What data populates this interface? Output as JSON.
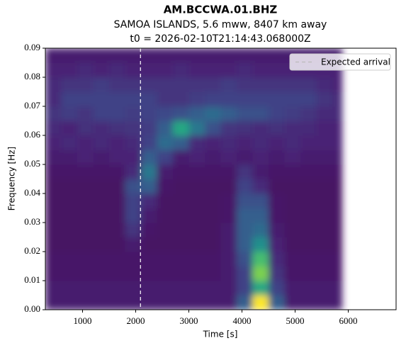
{
  "chart_data": {
    "type": "heatmap",
    "title": "AM.BCCWA.01.BHZ",
    "subtitle": "SAMOA ISLANDS, 5.6 mww, 8407 km away",
    "subtitle2": "t0 = 2026-02-10T21:14:43.068000Z",
    "x_label": "Time [s]",
    "y_label": "Frequency [Hz]",
    "colormap": "viridis",
    "xlim": [
      300,
      6900
    ],
    "ylim": [
      0,
      0.09
    ],
    "xticks": [
      1000,
      2000,
      3000,
      4000,
      5000,
      6000
    ],
    "yticks": [
      {
        "value": 0,
        "label": "0.00"
      },
      {
        "value": 0.01,
        "label": "0.01"
      },
      {
        "value": 0.02,
        "label": "0.02"
      },
      {
        "value": 0.03,
        "label": "0.03"
      },
      {
        "value": 0.04,
        "label": "0.04"
      },
      {
        "value": 0.05,
        "label": "0.05"
      },
      {
        "value": 0.06,
        "label": "0.06"
      },
      {
        "value": 0.07,
        "label": "0.07"
      },
      {
        "value": 0.08,
        "label": "0.08"
      },
      {
        "value": 0.09,
        "label": "0.09"
      }
    ],
    "xbins": [
      300,
      600,
      900,
      1200,
      1500,
      1800,
      2100,
      2400,
      2700,
      3000,
      3300,
      3600,
      3900,
      4200,
      4500,
      4800,
      5100,
      5400,
      5700,
      5880
    ],
    "ybins": [
      0,
      0.005,
      0.01,
      0.015,
      0.02,
      0.025,
      0.03,
      0.035,
      0.04,
      0.045,
      0.05,
      0.055,
      0.06,
      0.065,
      0.07,
      0.075,
      0.08,
      0.085,
      0.09
    ],
    "z": [
      [
        0.08,
        0.08,
        0.08,
        0.08,
        0.08,
        0.08,
        0.08,
        0.08,
        0.08,
        0.08,
        0.08,
        0.08,
        0.3,
        1.0,
        0.3,
        0.08,
        0.08,
        0.08,
        0.08
      ],
      [
        0.08,
        0.08,
        0.08,
        0.08,
        0.08,
        0.08,
        0.08,
        0.08,
        0.08,
        0.08,
        0.08,
        0.08,
        0.2,
        0.6,
        0.2,
        0.08,
        0.08,
        0.08,
        0.08
      ],
      [
        0.06,
        0.06,
        0.06,
        0.06,
        0.06,
        0.06,
        0.06,
        0.06,
        0.06,
        0.06,
        0.06,
        0.08,
        0.2,
        0.8,
        0.15,
        0.06,
        0.06,
        0.06,
        0.06
      ],
      [
        0.06,
        0.06,
        0.06,
        0.06,
        0.06,
        0.06,
        0.06,
        0.06,
        0.06,
        0.06,
        0.06,
        0.08,
        0.25,
        0.7,
        0.12,
        0.06,
        0.06,
        0.06,
        0.06
      ],
      [
        0.05,
        0.05,
        0.05,
        0.05,
        0.05,
        0.08,
        0.05,
        0.05,
        0.05,
        0.05,
        0.05,
        0.08,
        0.3,
        0.5,
        0.1,
        0.05,
        0.05,
        0.05,
        0.05
      ],
      [
        0.05,
        0.05,
        0.05,
        0.05,
        0.05,
        0.15,
        0.06,
        0.05,
        0.05,
        0.05,
        0.05,
        0.08,
        0.3,
        0.35,
        0.08,
        0.05,
        0.05,
        0.05,
        0.05
      ],
      [
        0.05,
        0.05,
        0.05,
        0.05,
        0.05,
        0.2,
        0.08,
        0.05,
        0.05,
        0.05,
        0.05,
        0.06,
        0.3,
        0.3,
        0.06,
        0.05,
        0.05,
        0.05,
        0.05
      ],
      [
        0.05,
        0.05,
        0.05,
        0.05,
        0.05,
        0.2,
        0.12,
        0.05,
        0.05,
        0.05,
        0.05,
        0.06,
        0.25,
        0.25,
        0.06,
        0.05,
        0.05,
        0.05,
        0.05
      ],
      [
        0.05,
        0.05,
        0.05,
        0.05,
        0.05,
        0.25,
        0.3,
        0.06,
        0.05,
        0.05,
        0.05,
        0.05,
        0.2,
        0.12,
        0.05,
        0.05,
        0.05,
        0.05,
        0.05
      ],
      [
        0.06,
        0.06,
        0.06,
        0.06,
        0.06,
        0.12,
        0.4,
        0.08,
        0.06,
        0.06,
        0.06,
        0.06,
        0.15,
        0.08,
        0.06,
        0.06,
        0.06,
        0.06,
        0.06
      ],
      [
        0.08,
        0.08,
        0.1,
        0.08,
        0.1,
        0.1,
        0.3,
        0.2,
        0.08,
        0.1,
        0.08,
        0.1,
        0.08,
        0.1,
        0.08,
        0.1,
        0.08,
        0.08,
        0.08
      ],
      [
        0.1,
        0.12,
        0.1,
        0.12,
        0.1,
        0.12,
        0.2,
        0.35,
        0.3,
        0.12,
        0.1,
        0.12,
        0.1,
        0.12,
        0.1,
        0.12,
        0.1,
        0.1,
        0.1
      ],
      [
        0.12,
        0.1,
        0.14,
        0.12,
        0.14,
        0.15,
        0.18,
        0.3,
        0.6,
        0.4,
        0.25,
        0.15,
        0.14,
        0.12,
        0.14,
        0.12,
        0.12,
        0.1,
        0.1
      ],
      [
        0.15,
        0.18,
        0.15,
        0.2,
        0.2,
        0.18,
        0.2,
        0.22,
        0.25,
        0.3,
        0.35,
        0.3,
        0.25,
        0.25,
        0.2,
        0.18,
        0.15,
        0.12,
        0.12
      ],
      [
        0.12,
        0.2,
        0.2,
        0.2,
        0.2,
        0.2,
        0.2,
        0.15,
        0.15,
        0.18,
        0.2,
        0.2,
        0.2,
        0.2,
        0.2,
        0.2,
        0.2,
        0.15,
        0.12
      ],
      [
        0.12,
        0.15,
        0.15,
        0.18,
        0.15,
        0.15,
        0.15,
        0.15,
        0.15,
        0.15,
        0.15,
        0.18,
        0.15,
        0.15,
        0.15,
        0.15,
        0.15,
        0.12,
        0.1
      ],
      [
        0.1,
        0.1,
        0.12,
        0.1,
        0.12,
        0.1,
        0.1,
        0.1,
        0.12,
        0.1,
        0.1,
        0.1,
        0.12,
        0.1,
        0.1,
        0.1,
        0.1,
        0.1,
        0.1
      ],
      [
        0.08,
        0.08,
        0.08,
        0.08,
        0.08,
        0.08,
        0.08,
        0.08,
        0.08,
        0.08,
        0.08,
        0.08,
        0.08,
        0.08,
        0.08,
        0.08,
        0.08,
        0.08,
        0.08
      ]
    ],
    "vlines": [
      {
        "x": 2090,
        "label": "Expected arrival",
        "color": "#ffffff"
      }
    ],
    "legend": "upper right"
  }
}
